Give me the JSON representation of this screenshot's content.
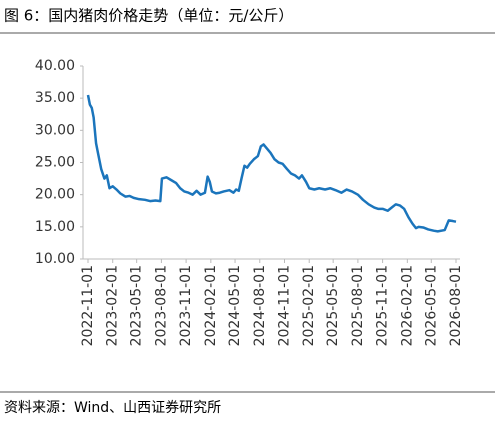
{
  "chart_data": {
    "type": "line",
    "title": "图 6：国内猪肉价格走势（单位：元/公斤）",
    "source": "资料来源：Wind、山西证券研究所",
    "x": [
      "2022-11-01",
      "2022-11-08",
      "2022-11-15",
      "2022-11-22",
      "2022-12-01",
      "2022-12-08",
      "2022-12-20",
      "2023-01-01",
      "2023-01-10",
      "2023-01-20",
      "2023-02-01",
      "2023-02-15",
      "2023-03-01",
      "2023-03-20",
      "2023-04-05",
      "2023-04-20",
      "2023-05-10",
      "2023-06-01",
      "2023-06-20",
      "2023-07-10",
      "2023-07-28",
      "2023-08-03",
      "2023-08-20",
      "2023-09-05",
      "2023-09-25",
      "2023-10-10",
      "2023-10-25",
      "2023-11-10",
      "2023-11-25",
      "2023-12-10",
      "2023-12-25",
      "2024-01-10",
      "2024-01-20",
      "2024-01-28",
      "2024-02-05",
      "2024-02-20",
      "2024-03-05",
      "2024-03-20",
      "2024-04-10",
      "2024-04-25",
      "2024-05-05",
      "2024-05-15",
      "2024-05-25",
      "2024-06-05",
      "2024-06-15",
      "2024-06-25",
      "2024-07-10",
      "2024-07-25",
      "2024-08-05",
      "2024-08-15",
      "2024-08-25",
      "2024-09-10",
      "2024-09-25",
      "2024-10-10",
      "2024-10-25",
      "2024-11-10",
      "2024-11-25",
      "2024-12-10",
      "2024-12-25",
      "2025-01-05",
      "2025-01-20",
      "2025-02-01",
      "2025-02-20",
      "2025-03-10",
      "2025-04-01",
      "2025-04-20",
      "2025-05-10",
      "2025-06-01",
      "2025-06-20",
      "2025-07-10",
      "2025-08-01",
      "2025-08-20",
      "2025-09-10",
      "2025-10-01",
      "2025-10-15",
      "2025-11-01",
      "2025-11-20",
      "2025-12-05",
      "2025-12-20",
      "2026-01-05",
      "2026-01-20",
      "2026-02-05",
      "2026-02-20",
      "2026-03-05",
      "2026-03-15",
      "2026-04-01",
      "2026-04-20",
      "2026-05-10",
      "2026-05-25",
      "2026-06-20",
      "2026-07-05",
      "2026-07-20",
      "2026-08-01"
    ],
    "series": [
      {
        "name": "猪肉价格",
        "color": "#1b75bc",
        "values": [
          35.5,
          34.0,
          33.5,
          32.0,
          28.0,
          26.5,
          24.0,
          22.5,
          23.0,
          21.0,
          21.3,
          20.8,
          20.2,
          19.7,
          19.8,
          19.5,
          19.3,
          19.2,
          19.0,
          19.1,
          19.0,
          22.5,
          22.7,
          22.3,
          21.8,
          21.0,
          20.5,
          20.3,
          20.0,
          20.6,
          20.0,
          20.3,
          22.8,
          22.0,
          20.5,
          20.2,
          20.3,
          20.5,
          20.7,
          20.3,
          20.8,
          20.6,
          22.5,
          24.5,
          24.2,
          24.8,
          25.5,
          26.0,
          27.5,
          27.8,
          27.3,
          26.5,
          25.5,
          25.0,
          24.8,
          24.0,
          23.3,
          23.0,
          22.5,
          23.0,
          22.0,
          21.0,
          20.8,
          21.0,
          20.8,
          21.0,
          20.7,
          20.3,
          20.8,
          20.5,
          20.0,
          19.2,
          18.5,
          18.0,
          17.8,
          17.8,
          17.5,
          18.0,
          18.5,
          18.3,
          17.8,
          16.5,
          15.5,
          14.8,
          15.0,
          14.9,
          14.6,
          14.4,
          14.3,
          14.5,
          16.0,
          15.9,
          15.8
        ]
      }
    ],
    "xlim": [
      "2022-11-01",
      "2026-08-01"
    ],
    "xticks": [
      "2022-11-01",
      "2023-02-01",
      "2023-05-01",
      "2023-08-01",
      "2023-11-01",
      "2024-02-01",
      "2024-05-01",
      "2024-08-01",
      "2024-11-01",
      "2025-02-01",
      "2025-05-01",
      "2025-08-01",
      "2025-11-01",
      "2026-02-01",
      "2026-05-01",
      "2026-08-01"
    ],
    "ylim": [
      10,
      40
    ],
    "yticks": [
      {
        "value": 10,
        "label": "10.00"
      },
      {
        "value": 15,
        "label": "15.00"
      },
      {
        "value": 20,
        "label": "20.00"
      },
      {
        "value": 25,
        "label": "25.00"
      },
      {
        "value": 30,
        "label": "30.00"
      },
      {
        "value": 35,
        "label": "35.00"
      },
      {
        "value": 40,
        "label": "40.00"
      }
    ]
  }
}
